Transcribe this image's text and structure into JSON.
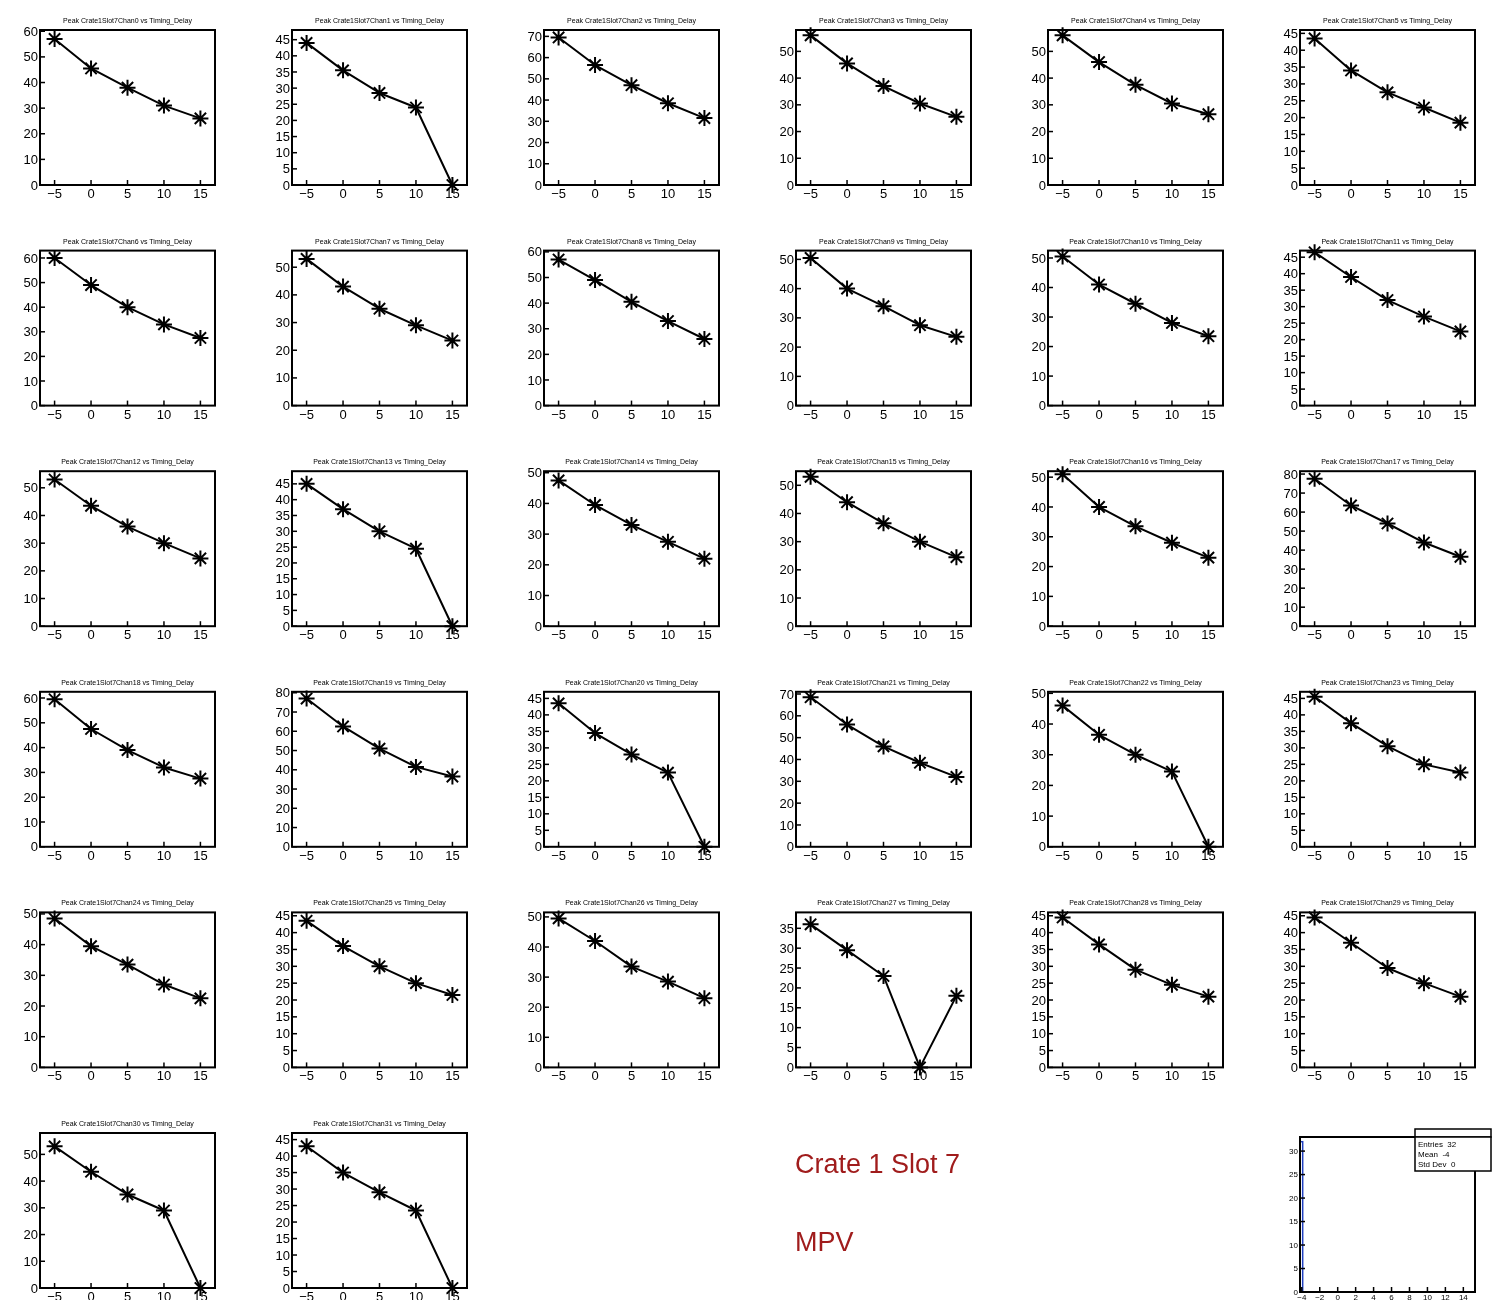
{
  "chart_data": [
    {
      "type": "line",
      "title": "Peak Crate1Slot7Chan0 vs Timing_Delay",
      "x": [
        -5,
        0,
        5,
        10,
        15
      ],
      "values": [
        57,
        45.5,
        38,
        31,
        26
      ],
      "color": "#000000",
      "marker": "cross",
      "xlim": [
        -7,
        17
      ],
      "xticks": [
        -5,
        0,
        5,
        10,
        15
      ],
      "ylim": [
        0,
        60.5
      ],
      "yticks": [
        0,
        10,
        20,
        30,
        40,
        50,
        60
      ]
    },
    {
      "type": "line",
      "title": "Peak Crate1Slot7Chan1 vs Timing_Delay",
      "x": [
        -5,
        0,
        5,
        10,
        15
      ],
      "values": [
        44,
        35.5,
        28.5,
        24,
        0
      ],
      "color": "#000000",
      "marker": "cross",
      "xlim": [
        -7,
        17
      ],
      "xticks": [
        -5,
        0,
        5,
        10,
        15
      ],
      "ylim": [
        0,
        48
      ],
      "yticks": [
        0,
        5,
        10,
        15,
        20,
        25,
        30,
        35,
        40,
        45
      ]
    },
    {
      "type": "line",
      "title": "Peak Crate1Slot7Chan2 vs Timing_Delay",
      "x": [
        -5,
        0,
        5,
        10,
        15
      ],
      "values": [
        69.5,
        56.5,
        47,
        38.5,
        31.5
      ],
      "color": "#000000",
      "marker": "cross",
      "xlim": [
        -7,
        17
      ],
      "xticks": [
        -5,
        0,
        5,
        10,
        15
      ],
      "ylim": [
        0,
        73
      ],
      "yticks": [
        0,
        10,
        20,
        30,
        40,
        50,
        60,
        70
      ]
    },
    {
      "type": "line",
      "title": "Peak Crate1Slot7Chan3 vs Timing_Delay",
      "x": [
        -5,
        0,
        5,
        10,
        15
      ],
      "values": [
        56,
        45.5,
        37,
        30.5,
        25.5
      ],
      "color": "#000000",
      "marker": "cross",
      "xlim": [
        -7,
        17
      ],
      "xticks": [
        -5,
        0,
        5,
        10,
        15
      ],
      "ylim": [
        0,
        58
      ],
      "yticks": [
        0,
        10,
        20,
        30,
        40,
        50
      ]
    },
    {
      "type": "line",
      "title": "Peak Crate1Slot7Chan4 vs Timing_Delay",
      "x": [
        -5,
        0,
        5,
        10,
        15
      ],
      "values": [
        56,
        46,
        37.5,
        30.5,
        26.5
      ],
      "color": "#000000",
      "marker": "cross",
      "xlim": [
        -7,
        17
      ],
      "xticks": [
        -5,
        0,
        5,
        10,
        15
      ],
      "ylim": [
        0,
        58
      ],
      "yticks": [
        0,
        10,
        20,
        30,
        40,
        50
      ]
    },
    {
      "type": "line",
      "title": "Peak Crate1Slot7Chan5 vs Timing_Delay",
      "x": [
        -5,
        0,
        5,
        10,
        15
      ],
      "values": [
        43.5,
        34,
        27.5,
        23,
        18.5
      ],
      "color": "#000000",
      "marker": "cross",
      "xlim": [
        -7,
        17
      ],
      "xticks": [
        -5,
        0,
        5,
        10,
        15
      ],
      "ylim": [
        0,
        46
      ],
      "yticks": [
        0,
        5,
        10,
        15,
        20,
        25,
        30,
        35,
        40,
        45
      ]
    },
    {
      "type": "line",
      "title": "Peak Crate1Slot7Chan6 vs Timing_Delay",
      "x": [
        -5,
        0,
        5,
        10,
        15
      ],
      "values": [
        60,
        49,
        40,
        33,
        27.5
      ],
      "color": "#000000",
      "marker": "cross",
      "xlim": [
        -7,
        17
      ],
      "xticks": [
        -5,
        0,
        5,
        10,
        15
      ],
      "ylim": [
        0,
        63
      ],
      "yticks": [
        0,
        10,
        20,
        30,
        40,
        50,
        60
      ]
    },
    {
      "type": "line",
      "title": "Peak Crate1Slot7Chan7 vs Timing_Delay",
      "x": [
        -5,
        0,
        5,
        10,
        15
      ],
      "values": [
        53,
        43,
        35,
        29,
        23.5
      ],
      "color": "#000000",
      "marker": "cross",
      "xlim": [
        -7,
        17
      ],
      "xticks": [
        -5,
        0,
        5,
        10,
        15
      ],
      "ylim": [
        0,
        56
      ],
      "yticks": [
        0,
        10,
        20,
        30,
        40,
        50
      ]
    },
    {
      "type": "line",
      "title": "Peak Crate1Slot7Chan8 vs Timing_Delay",
      "x": [
        -5,
        0,
        5,
        10,
        15
      ],
      "values": [
        57,
        49,
        40.5,
        33,
        26
      ],
      "color": "#000000",
      "marker": "cross",
      "xlim": [
        -7,
        17
      ],
      "xticks": [
        -5,
        0,
        5,
        10,
        15
      ],
      "ylim": [
        0,
        60.5
      ],
      "yticks": [
        0,
        10,
        20,
        30,
        40,
        50,
        60
      ]
    },
    {
      "type": "line",
      "title": "Peak Crate1Slot7Chan9 vs Timing_Delay",
      "x": [
        -5,
        0,
        5,
        10,
        15
      ],
      "values": [
        50.5,
        40,
        34,
        27.5,
        23.5
      ],
      "color": "#000000",
      "marker": "cross",
      "xlim": [
        -7,
        17
      ],
      "xticks": [
        -5,
        0,
        5,
        10,
        15
      ],
      "ylim": [
        0,
        53
      ],
      "yticks": [
        0,
        10,
        20,
        30,
        40,
        50
      ]
    },
    {
      "type": "line",
      "title": "Peak Crate1Slot7Chan10 vs Timing_Delay",
      "x": [
        -5,
        0,
        5,
        10,
        15
      ],
      "values": [
        50.5,
        41,
        34.5,
        28,
        23.5
      ],
      "color": "#000000",
      "marker": "cross",
      "xlim": [
        -7,
        17
      ],
      "xticks": [
        -5,
        0,
        5,
        10,
        15
      ],
      "ylim": [
        0,
        52.5
      ],
      "yticks": [
        0,
        10,
        20,
        30,
        40,
        50
      ]
    },
    {
      "type": "line",
      "title": "Peak Crate1Slot7Chan11 vs Timing_Delay",
      "x": [
        -5,
        0,
        5,
        10,
        15
      ],
      "values": [
        46.5,
        39,
        32,
        27,
        22.5
      ],
      "color": "#000000",
      "marker": "cross",
      "xlim": [
        -7,
        17
      ],
      "xticks": [
        -5,
        0,
        5,
        10,
        15
      ],
      "ylim": [
        0,
        47
      ],
      "yticks": [
        0,
        5,
        10,
        15,
        20,
        25,
        30,
        35,
        40,
        45
      ]
    },
    {
      "type": "line",
      "title": "Peak Crate1Slot7Chan12 vs Timing_Delay",
      "x": [
        -5,
        0,
        5,
        10,
        15
      ],
      "values": [
        53,
        43.5,
        36,
        30,
        24.5
      ],
      "color": "#000000",
      "marker": "cross",
      "xlim": [
        -7,
        17
      ],
      "xticks": [
        -5,
        0,
        5,
        10,
        15
      ],
      "ylim": [
        0,
        56
      ],
      "yticks": [
        0,
        10,
        20,
        30,
        40,
        50
      ]
    },
    {
      "type": "line",
      "title": "Peak Crate1Slot7Chan13 vs Timing_Delay",
      "x": [
        -5,
        0,
        5,
        10,
        15
      ],
      "values": [
        45,
        37,
        30,
        24.5,
        0
      ],
      "color": "#000000",
      "marker": "cross",
      "xlim": [
        -7,
        17
      ],
      "xticks": [
        -5,
        0,
        5,
        10,
        15
      ],
      "ylim": [
        0,
        49
      ],
      "yticks": [
        0,
        5,
        10,
        15,
        20,
        25,
        30,
        35,
        40,
        45
      ]
    },
    {
      "type": "line",
      "title": "Peak Crate1Slot7Chan14 vs Timing_Delay",
      "x": [
        -5,
        0,
        5,
        10,
        15
      ],
      "values": [
        47.5,
        39.5,
        33,
        27.5,
        22
      ],
      "color": "#000000",
      "marker": "cross",
      "xlim": [
        -7,
        17
      ],
      "xticks": [
        -5,
        0,
        5,
        10,
        15
      ],
      "ylim": [
        0,
        50.5
      ],
      "yticks": [
        0,
        10,
        20,
        30,
        40,
        50
      ]
    },
    {
      "type": "line",
      "title": "Peak Crate1Slot7Chan15 vs Timing_Delay",
      "x": [
        -5,
        0,
        5,
        10,
        15
      ],
      "values": [
        53,
        44,
        36.5,
        30,
        24.5
      ],
      "color": "#000000",
      "marker": "cross",
      "xlim": [
        -7,
        17
      ],
      "xticks": [
        -5,
        0,
        5,
        10,
        15
      ],
      "ylim": [
        0,
        55
      ],
      "yticks": [
        0,
        10,
        20,
        30,
        40,
        50
      ]
    },
    {
      "type": "line",
      "title": "Peak Crate1Slot7Chan16 vs Timing_Delay",
      "x": [
        -5,
        0,
        5,
        10,
        15
      ],
      "values": [
        51,
        40,
        33.5,
        28,
        23
      ],
      "color": "#000000",
      "marker": "cross",
      "xlim": [
        -7,
        17
      ],
      "xticks": [
        -5,
        0,
        5,
        10,
        15
      ],
      "ylim": [
        0,
        52
      ],
      "yticks": [
        0,
        10,
        20,
        30,
        40,
        50
      ]
    },
    {
      "type": "line",
      "title": "Peak Crate1Slot7Chan17 vs Timing_Delay",
      "x": [
        -5,
        0,
        5,
        10,
        15
      ],
      "values": [
        77.5,
        63.5,
        54,
        44,
        36.5
      ],
      "color": "#000000",
      "marker": "cross",
      "xlim": [
        -7,
        17
      ],
      "xticks": [
        -5,
        0,
        5,
        10,
        15
      ],
      "ylim": [
        0,
        81.5
      ],
      "yticks": [
        0,
        10,
        20,
        30,
        40,
        50,
        60,
        70,
        80
      ]
    },
    {
      "type": "line",
      "title": "Peak Crate1Slot7Chan18 vs Timing_Delay",
      "x": [
        -5,
        0,
        5,
        10,
        15
      ],
      "values": [
        59.5,
        47.5,
        39,
        32,
        27.5
      ],
      "color": "#000000",
      "marker": "cross",
      "xlim": [
        -7,
        17
      ],
      "xticks": [
        -5,
        0,
        5,
        10,
        15
      ],
      "ylim": [
        0,
        62.5
      ],
      "yticks": [
        0,
        10,
        20,
        30,
        40,
        50,
        60
      ]
    },
    {
      "type": "line",
      "title": "Peak Crate1Slot7Chan19 vs Timing_Delay",
      "x": [
        -5,
        0,
        5,
        10,
        15
      ],
      "values": [
        77,
        62.5,
        51,
        41.5,
        36.5
      ],
      "color": "#000000",
      "marker": "cross",
      "xlim": [
        -7,
        17
      ],
      "xticks": [
        -5,
        0,
        5,
        10,
        15
      ],
      "ylim": [
        0,
        80.5
      ],
      "yticks": [
        0,
        10,
        20,
        30,
        40,
        50,
        60,
        70,
        80
      ]
    },
    {
      "type": "line",
      "title": "Peak Crate1Slot7Chan20 vs Timing_Delay",
      "x": [
        -5,
        0,
        5,
        10,
        15
      ],
      "values": [
        43.5,
        34.5,
        28,
        22.5,
        0
      ],
      "color": "#000000",
      "marker": "cross",
      "xlim": [
        -7,
        17
      ],
      "xticks": [
        -5,
        0,
        5,
        10,
        15
      ],
      "ylim": [
        0,
        47
      ],
      "yticks": [
        0,
        5,
        10,
        15,
        20,
        25,
        30,
        35,
        40,
        45
      ]
    },
    {
      "type": "line",
      "title": "Peak Crate1Slot7Chan21 vs Timing_Delay",
      "x": [
        -5,
        0,
        5,
        10,
        15
      ],
      "values": [
        68.5,
        56,
        46,
        38.5,
        32
      ],
      "color": "#000000",
      "marker": "cross",
      "xlim": [
        -7,
        17
      ],
      "xticks": [
        -5,
        0,
        5,
        10,
        15
      ],
      "ylim": [
        0,
        71
      ],
      "yticks": [
        0,
        10,
        20,
        30,
        40,
        50,
        60,
        70
      ]
    },
    {
      "type": "line",
      "title": "Peak Crate1Slot7Chan22 vs Timing_Delay",
      "x": [
        -5,
        0,
        5,
        10,
        15
      ],
      "values": [
        46,
        36.5,
        30,
        24.5,
        0
      ],
      "color": "#000000",
      "marker": "cross",
      "xlim": [
        -7,
        17
      ],
      "xticks": [
        -5,
        0,
        5,
        10,
        15
      ],
      "ylim": [
        0,
        50.5
      ],
      "yticks": [
        0,
        10,
        20,
        30,
        40,
        50
      ]
    },
    {
      "type": "line",
      "title": "Peak Crate1Slot7Chan23 vs Timing_Delay",
      "x": [
        -5,
        0,
        5,
        10,
        15
      ],
      "values": [
        45.5,
        37.5,
        30.5,
        25,
        22.5
      ],
      "color": "#000000",
      "marker": "cross",
      "xlim": [
        -7,
        17
      ],
      "xticks": [
        -5,
        0,
        5,
        10,
        15
      ],
      "ylim": [
        0,
        47
      ],
      "yticks": [
        0,
        5,
        10,
        15,
        20,
        25,
        30,
        35,
        40,
        45
      ]
    },
    {
      "type": "line",
      "title": "Peak Crate1Slot7Chan24 vs Timing_Delay",
      "x": [
        -5,
        0,
        5,
        10,
        15
      ],
      "values": [
        48.5,
        39.5,
        33.5,
        27,
        22.5
      ],
      "color": "#000000",
      "marker": "cross",
      "xlim": [
        -7,
        17
      ],
      "xticks": [
        -5,
        0,
        5,
        10,
        15
      ],
      "ylim": [
        0,
        50.5
      ],
      "yticks": [
        0,
        10,
        20,
        30,
        40,
        50
      ]
    },
    {
      "type": "line",
      "title": "Peak Crate1Slot7Chan25 vs Timing_Delay",
      "x": [
        -5,
        0,
        5,
        10,
        15
      ],
      "values": [
        43.5,
        36,
        30,
        25,
        21.5
      ],
      "color": "#000000",
      "marker": "cross",
      "xlim": [
        -7,
        17
      ],
      "xticks": [
        -5,
        0,
        5,
        10,
        15
      ],
      "ylim": [
        0,
        46
      ],
      "yticks": [
        0,
        5,
        10,
        15,
        20,
        25,
        30,
        35,
        40,
        45
      ]
    },
    {
      "type": "line",
      "title": "Peak Crate1Slot7Chan26 vs Timing_Delay",
      "x": [
        -5,
        0,
        5,
        10,
        15
      ],
      "values": [
        49.5,
        42,
        33.5,
        28.5,
        23
      ],
      "color": "#000000",
      "marker": "cross",
      "xlim": [
        -7,
        17
      ],
      "xticks": [
        -5,
        0,
        5,
        10,
        15
      ],
      "ylim": [
        0,
        51.5
      ],
      "yticks": [
        0,
        10,
        20,
        30,
        40,
        50
      ]
    },
    {
      "type": "line",
      "title": "Peak Crate1Slot7Chan27 vs Timing_Delay",
      "x": [
        -5,
        0,
        5,
        10,
        15
      ],
      "values": [
        36,
        29.5,
        23,
        0,
        18
      ],
      "color": "#000000",
      "marker": "cross",
      "xlim": [
        -7,
        17
      ],
      "xticks": [
        -5,
        0,
        5,
        10,
        15
      ],
      "ylim": [
        0,
        39
      ],
      "yticks": [
        0,
        5,
        10,
        15,
        20,
        25,
        30,
        35
      ]
    },
    {
      "type": "line",
      "title": "Peak Crate1Slot7Chan28 vs Timing_Delay",
      "x": [
        -5,
        0,
        5,
        10,
        15
      ],
      "values": [
        44.5,
        36.5,
        29,
        24.5,
        21
      ],
      "color": "#000000",
      "marker": "cross",
      "xlim": [
        -7,
        17
      ],
      "xticks": [
        -5,
        0,
        5,
        10,
        15
      ],
      "ylim": [
        0,
        46
      ],
      "yticks": [
        0,
        5,
        10,
        15,
        20,
        25,
        30,
        35,
        40,
        45
      ]
    },
    {
      "type": "line",
      "title": "Peak Crate1Slot7Chan29 vs Timing_Delay",
      "x": [
        -5,
        0,
        5,
        10,
        15
      ],
      "values": [
        44.5,
        37,
        29.5,
        25,
        21
      ],
      "color": "#000000",
      "marker": "cross",
      "xlim": [
        -7,
        17
      ],
      "xticks": [
        -5,
        0,
        5,
        10,
        15
      ],
      "ylim": [
        0,
        46
      ],
      "yticks": [
        0,
        5,
        10,
        15,
        20,
        25,
        30,
        35,
        40,
        45
      ]
    },
    {
      "type": "line",
      "title": "Peak Crate1Slot7Chan30 vs Timing_Delay",
      "x": [
        -5,
        0,
        5,
        10,
        15
      ],
      "values": [
        53,
        43.5,
        35,
        29,
        0
      ],
      "color": "#000000",
      "marker": "cross",
      "xlim": [
        -7,
        17
      ],
      "xticks": [
        -5,
        0,
        5,
        10,
        15
      ],
      "ylim": [
        0,
        58
      ],
      "yticks": [
        0,
        10,
        20,
        30,
        40,
        50
      ]
    },
    {
      "type": "line",
      "title": "Peak Crate1Slot7Chan31 vs Timing_Delay",
      "x": [
        -5,
        0,
        5,
        10,
        15
      ],
      "values": [
        43,
        35,
        29,
        23.5,
        0
      ],
      "color": "#000000",
      "marker": "cross",
      "xlim": [
        -7,
        17
      ],
      "xticks": [
        -5,
        0,
        5,
        10,
        15
      ],
      "ylim": [
        0,
        47
      ],
      "yticks": [
        0,
        5,
        10,
        15,
        20,
        25,
        30,
        35,
        40,
        45
      ]
    },
    {
      "type": "other",
      "annotations": [
        "Crate 1 Slot 7",
        "MPV"
      ]
    },
    {
      "type": "histogram",
      "bins": [
        -4.2,
        -3.9
      ],
      "values": [
        32
      ],
      "color": "#2040c0",
      "xlim": [
        -4.2,
        15.3
      ],
      "xticks": [
        -4,
        -2,
        0,
        2,
        4,
        6,
        8,
        10,
        12,
        14
      ],
      "ylim": [
        0,
        33
      ],
      "yticks": [
        0,
        5,
        10,
        15,
        20,
        25,
        30
      ],
      "annotations": [
        "Entries  32",
        "Mean  -4",
        "Std Dev  0"
      ]
    }
  ]
}
